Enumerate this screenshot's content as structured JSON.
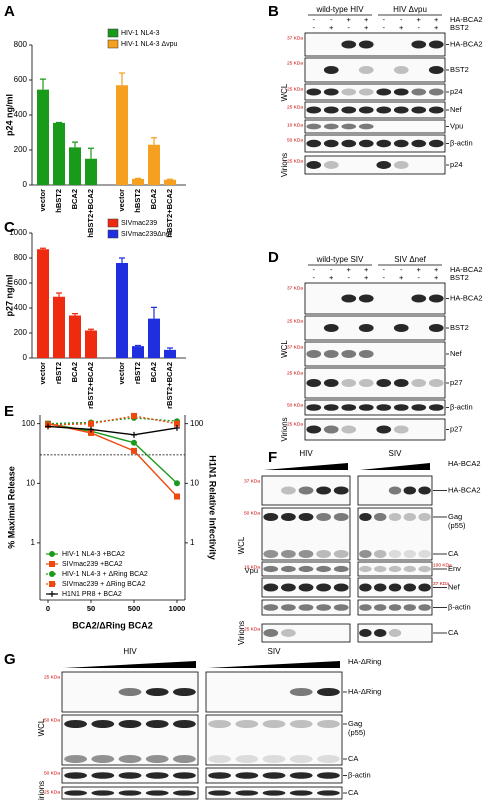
{
  "panels": [
    "A",
    "B",
    "C",
    "D",
    "E",
    "F",
    "G"
  ],
  "chart_data": [
    {
      "type": "bar",
      "y_label": "p24 ng/ml",
      "categories": [
        "vector",
        "hBST2",
        "BCA2",
        "hBST2+BCA2"
      ],
      "series": [
        {
          "name": "HIV-1 NL4-3",
          "color": "#1a9a1a",
          "values": [
            545,
            355,
            215,
            150
          ],
          "errors": [
            60,
            2,
            30,
            60
          ]
        },
        {
          "name": "HIV-1 NL4-3 Δvpu",
          "color": "#f5a020",
          "values": [
            570,
            35,
            230,
            30
          ],
          "errors": [
            70,
            3,
            40,
            3
          ]
        }
      ],
      "ylim": [
        0,
        800
      ],
      "yticks": [
        0,
        200,
        400,
        600,
        800
      ]
    },
    {
      "type": "bar",
      "y_label": "p27 ng/ml",
      "categories": [
        "vector",
        "rBST2",
        "BCA2",
        "rBST2+BCA2"
      ],
      "series": [
        {
          "name": "SIVmac239",
          "color": "#ee2a10",
          "values": [
            870,
            490,
            340,
            220
          ],
          "errors": [
            8,
            30,
            15,
            10
          ]
        },
        {
          "name": "SIVmac239Δnef",
          "color": "#1f2fe0",
          "values": [
            760,
            95,
            315,
            65
          ],
          "errors": [
            40,
            5,
            90,
            15
          ]
        }
      ],
      "ylim": [
        0,
        1000
      ],
      "yticks": [
        0,
        200,
        400,
        600,
        800,
        1000
      ]
    },
    {
      "type": "line",
      "log_y": true,
      "x_label": "BCA2/ΔRing BCA2",
      "y_label": "% Maximal Release",
      "y2_label": "H1N1 Relative Infectivity",
      "categories": [
        "0",
        "50",
        "500",
        "1000"
      ],
      "series": [
        {
          "name": "HIV-1 NL4-3 +BCA2",
          "color": "#1a9a1a",
          "marker": "circle",
          "line": "solid",
          "values": [
            100,
            75,
            48,
            10
          ]
        },
        {
          "name": "SIVmac239 +BCA2",
          "color": "#ee4a10",
          "marker": "square",
          "line": "solid",
          "values": [
            100,
            70,
            35,
            6
          ]
        },
        {
          "name": "HIV-1 NL4-3 + ΔRing BCA2",
          "color": "#1a9a1a",
          "marker": "circle",
          "line": "dotted",
          "values": [
            100,
            105,
            125,
            110
          ]
        },
        {
          "name": "SIVmac239 + ΔRing BCA2",
          "color": "#ee4a10",
          "marker": "square",
          "line": "dotted",
          "values": [
            95,
            100,
            135,
            100
          ]
        },
        {
          "name": "H1N1 PR8 + BCA2",
          "color": "#000000",
          "marker": "plus",
          "line": "solid",
          "axis": "y2",
          "values": [
            90,
            80,
            65,
            85
          ]
        }
      ],
      "ylim": [
        0.11,
        140
      ],
      "yticks": [
        1,
        10,
        100
      ],
      "y2lim": [
        0.11,
        140
      ],
      "y2ticks": [
        1,
        10,
        100
      ],
      "reference_line": 30
    }
  ],
  "blots": [
    {
      "groups": [
        "wild-type HIV",
        "HIV Δvpu"
      ],
      "conditions": [
        {
          "label": "HA-BCA2",
          "signs": [
            "-",
            "-",
            "+",
            "+",
            "-",
            "-",
            "+",
            "+"
          ]
        },
        {
          "label": "BST2",
          "signs": [
            "-",
            "+",
            "-",
            "+",
            "-",
            "+",
            "-",
            "+"
          ]
        }
      ],
      "rows": [
        {
          "labels": [
            "HA-BCA2"
          ],
          "mw": "37 KDa"
        },
        {
          "labels": [
            "BST2"
          ],
          "mw": "25 KDa"
        },
        {
          "labels": [
            "p24"
          ],
          "mw": "25 KDa"
        },
        {
          "labels": [
            "Nef"
          ],
          "mw": "25 KDa"
        },
        {
          "labels": [
            "Vpu"
          ],
          "mw": "10 KDa"
        },
        {
          "labels": [
            "β-actin"
          ],
          "mw": "50 KDa"
        },
        {
          "labels": [
            "p24"
          ],
          "mw": "25 KDa"
        }
      ],
      "sections": [
        "WCL",
        "Virions"
      ]
    },
    {
      "groups": [
        "wild-type SIV",
        "SIV Δnef"
      ],
      "conditions": [
        {
          "label": "HA-BCA2",
          "signs": [
            "-",
            "-",
            "+",
            "+",
            "-",
            "-",
            "+",
            "+"
          ]
        },
        {
          "label": "BST2",
          "signs": [
            "-",
            "+",
            "-",
            "+",
            "-",
            "+",
            "-",
            "+"
          ]
        }
      ],
      "rows": [
        {
          "labels": [
            "HA-BCA2"
          ],
          "mw": "37 KDa"
        },
        {
          "labels": [
            "BST2"
          ],
          "mw": "25 KDa"
        },
        {
          "labels": [
            "Nef"
          ],
          "mw": "37 KDa"
        },
        {
          "labels": [
            "p27"
          ],
          "mw": "25 KDa"
        },
        {
          "labels": [
            "β-actin"
          ],
          "mw": "50 KDa"
        },
        {
          "labels": [
            "p27"
          ],
          "mw": "25 KDa"
        }
      ],
      "sections": [
        "WCL",
        "Virions"
      ]
    },
    {
      "groups": [
        "HIV",
        "SIV"
      ],
      "titration": "HA-BCA2",
      "rows": [
        {
          "labels": [
            "HA-BCA2"
          ],
          "mw": "37 KDa"
        },
        {
          "labels": [
            "Gag",
            "(p55)",
            "CA"
          ],
          "mw": "50 KDa"
        },
        {
          "labels": [
            "Env"
          ],
          "left_label": "Vpu",
          "mw": "10 KDa",
          "mw2": "100 KDa"
        },
        {
          "labels": [
            "Nef"
          ],
          "mw2": "37 KDa"
        },
        {
          "labels": [
            "β-actin"
          ]
        },
        {
          "labels": [
            "CA"
          ],
          "mw": "25 KDa"
        }
      ],
      "sections": [
        "WCL",
        "Virions"
      ]
    },
    {
      "groups": [
        "HIV",
        "SIV"
      ],
      "titration": "HA-ΔRing",
      "rows": [
        {
          "labels": [
            "HA-ΔRing"
          ],
          "mw": "25 KDa"
        },
        {
          "labels": [
            "Gag",
            "(p55)",
            "CA"
          ],
          "mw": "50 KDa"
        },
        {
          "labels": [
            "β-actin"
          ],
          "mw": "50 KDa"
        },
        {
          "labels": [
            "CA"
          ],
          "mw": "25 KDa"
        }
      ],
      "sections": [
        "WCL",
        "Virions"
      ]
    }
  ]
}
